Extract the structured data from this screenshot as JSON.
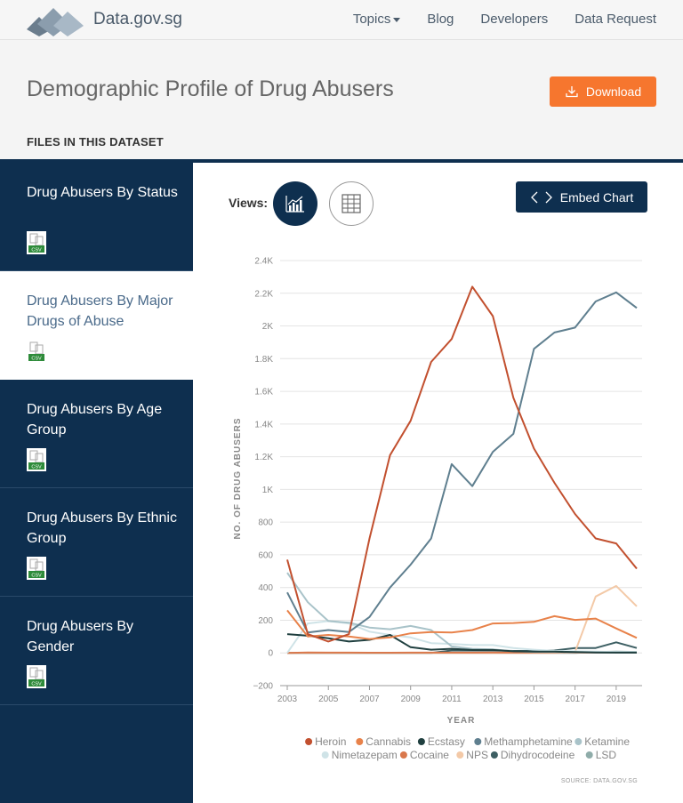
{
  "header": {
    "site_name": "Data.gov.sg",
    "nav": {
      "topics": "Topics",
      "blog": "Blog",
      "developers": "Developers",
      "data_request": "Data Request"
    }
  },
  "page": {
    "title": "Demographic Profile of Drug Abusers",
    "download_label": "Download",
    "files_label": "FILES IN THIS DATASET"
  },
  "sidebar": {
    "items": [
      {
        "label": "Drug Abusers By Status",
        "file_type": "CSV"
      },
      {
        "label": "Drug Abusers By Major Drugs of Abuse",
        "file_type": "CSV"
      },
      {
        "label": "Drug Abusers By Age Group",
        "file_type": "CSV"
      },
      {
        "label": "Drug Abusers By Ethnic Group",
        "file_type": "CSV"
      },
      {
        "label": "Drug Abusers By Gender",
        "file_type": "CSV"
      }
    ]
  },
  "toolbar": {
    "views_label": "Views:",
    "embed_label": "Embed Chart"
  },
  "colors": {
    "navy": "#0e2f4f",
    "orange": "#f6762e"
  },
  "chart_data": {
    "type": "line",
    "title": "",
    "xlabel": "YEAR",
    "ylabel": "NO. OF DRUG ABUSERS",
    "ylim": [
      -200,
      2400
    ],
    "y_ticks": [
      -200,
      0,
      200,
      400,
      600,
      800,
      1000,
      1200,
      1400,
      1600,
      1800,
      2000,
      2200,
      2400
    ],
    "y_tick_labels": [
      "−200",
      "0",
      "200",
      "400",
      "600",
      "800",
      "1K",
      "1.2K",
      "1.4K",
      "1.6K",
      "1.8K",
      "2K",
      "2.2K",
      "2.4K"
    ],
    "x_tick_labels": [
      "2003",
      "2005",
      "2007",
      "2009",
      "2011",
      "2013",
      "2015",
      "2017",
      "2019"
    ],
    "x": [
      2003,
      2004,
      2005,
      2006,
      2007,
      2008,
      2009,
      2010,
      2011,
      2012,
      2013,
      2014,
      2015,
      2016,
      2017,
      2018,
      2019,
      2020
    ],
    "series": [
      {
        "name": "Heroin",
        "color": "#c2502f",
        "values": [
          570,
          115,
          70,
          115,
          700,
          1210,
          1420,
          1780,
          1920,
          2240,
          2060,
          1560,
          1250,
          1040,
          850,
          700,
          670,
          515
        ]
      },
      {
        "name": "Cannabis",
        "color": "#e8824a",
        "values": [
          260,
          100,
          110,
          100,
          85,
          95,
          120,
          128,
          125,
          140,
          180,
          183,
          190,
          225,
          202,
          210,
          150,
          92
        ]
      },
      {
        "name": "Ecstasy",
        "color": "#1f3f3f",
        "values": [
          115,
          105,
          90,
          70,
          80,
          110,
          35,
          20,
          25,
          18,
          18,
          10,
          8,
          8,
          5,
          3,
          2,
          2
        ]
      },
      {
        "name": "Methamphetamine",
        "color": "#5f7f8f",
        "values": [
          370,
          125,
          140,
          128,
          220,
          400,
          540,
          700,
          1155,
          1020,
          1230,
          1340,
          1860,
          1960,
          1990,
          2150,
          2205,
          2110
        ]
      },
      {
        "name": "Ketamine",
        "color": "#a9c3c9",
        "values": [
          490,
          310,
          195,
          185,
          155,
          145,
          165,
          140,
          40,
          25,
          22,
          10,
          6,
          5,
          4,
          3,
          2,
          2
        ]
      },
      {
        "name": "Nimetazepam",
        "color": "#cfe3e7",
        "values": [
          0,
          180,
          195,
          180,
          130,
          110,
          95,
          60,
          55,
          48,
          48,
          30,
          20,
          12,
          10,
          8,
          6,
          5
        ]
      },
      {
        "name": "Cocaine",
        "color": "#d9784c",
        "values": [
          0,
          3,
          2,
          2,
          1,
          1,
          2,
          2,
          2,
          2,
          3,
          2,
          3,
          3,
          2,
          2,
          3,
          3
        ]
      },
      {
        "name": "NPS",
        "color": "#f3c9a7",
        "values": [
          0,
          0,
          0,
          0,
          0,
          0,
          0,
          0,
          0,
          0,
          0,
          0,
          0,
          0,
          5,
          345,
          410,
          285
        ]
      },
      {
        "name": "Dihydrocodeine",
        "color": "#3d5f63",
        "values": [
          0,
          0,
          0,
          0,
          0,
          0,
          0,
          0,
          15,
          15,
          15,
          12,
          12,
          15,
          30,
          30,
          65,
          30
        ]
      },
      {
        "name": "LSD",
        "color": "#8faca9",
        "values": [
          0,
          0,
          0,
          0,
          0,
          0,
          0,
          0,
          0,
          0,
          0,
          0,
          0,
          0,
          0,
          5,
          8,
          6
        ]
      }
    ],
    "source": "SOURCE: DATA.GOV.SG"
  }
}
